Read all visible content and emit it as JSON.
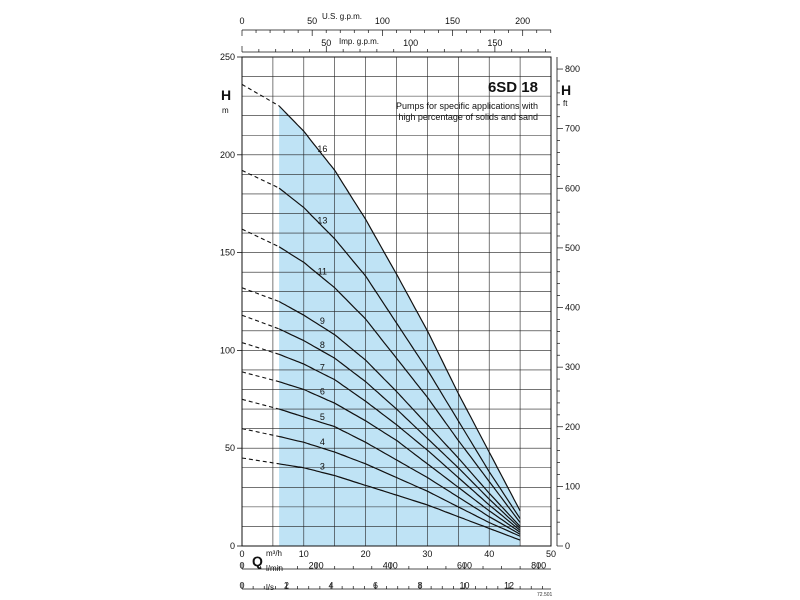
{
  "chart_data": {
    "type": "line",
    "title": "6SD 18",
    "annotation": [
      "Pumps for specific applications with",
      "high percentage of solids and sand"
    ],
    "figure_code": "72.501",
    "y_left": {
      "label": "H",
      "unit": "m",
      "range": [
        0,
        250
      ],
      "ticks": [
        0,
        50,
        100,
        150,
        200,
        250
      ]
    },
    "y_right": {
      "label": "H",
      "unit": "ft",
      "range": [
        0,
        820.2
      ],
      "ticks": [
        0,
        100,
        200,
        300,
        400,
        500,
        600,
        700,
        800
      ]
    },
    "x_axes": {
      "m3h": {
        "label": "Q",
        "unit": "m³/h",
        "range": [
          0,
          50
        ],
        "ticks": [
          0,
          10,
          20,
          30,
          40,
          50
        ]
      },
      "lmin": {
        "unit": "l/min",
        "ticks": [
          0,
          200,
          400,
          600,
          800
        ]
      },
      "ls": {
        "unit": "l/s",
        "ticks": [
          0,
          2,
          4,
          6,
          8,
          10,
          12
        ]
      },
      "usgpm": {
        "unit": "U.S. g.p.m.",
        "ticks": [
          0,
          50,
          100,
          150,
          200
        ]
      },
      "impgpm": {
        "unit": "Imp. g.p.m.",
        "ticks": [
          0,
          50,
          100,
          150
        ]
      }
    },
    "operating_range": [
      6,
      45
    ],
    "grid": true,
    "series": [
      {
        "name": "16",
        "label_x": 13,
        "points": [
          [
            0,
            236
          ],
          [
            6,
            225
          ],
          [
            10,
            212
          ],
          [
            15,
            192
          ],
          [
            20,
            167
          ],
          [
            25,
            139
          ],
          [
            30,
            110
          ],
          [
            35,
            78
          ],
          [
            40,
            48
          ],
          [
            45,
            18
          ]
        ]
      },
      {
        "name": "13",
        "label_x": 13,
        "points": [
          [
            0,
            192
          ],
          [
            6,
            183
          ],
          [
            10,
            173
          ],
          [
            15,
            157
          ],
          [
            20,
            138
          ],
          [
            25,
            114
          ],
          [
            30,
            90
          ],
          [
            35,
            64
          ],
          [
            40,
            38
          ],
          [
            45,
            14
          ]
        ]
      },
      {
        "name": "11",
        "label_x": 13,
        "points": [
          [
            0,
            162
          ],
          [
            6,
            153
          ],
          [
            10,
            145
          ],
          [
            15,
            132
          ],
          [
            20,
            116
          ],
          [
            25,
            96
          ],
          [
            30,
            76
          ],
          [
            35,
            54
          ],
          [
            40,
            33
          ],
          [
            45,
            12
          ]
        ]
      },
      {
        "name": "9",
        "label_x": 13,
        "points": [
          [
            0,
            132
          ],
          [
            6,
            125
          ],
          [
            10,
            118
          ],
          [
            15,
            108
          ],
          [
            20,
            95
          ],
          [
            25,
            79
          ],
          [
            30,
            62
          ],
          [
            35,
            45
          ],
          [
            40,
            27
          ],
          [
            45,
            10
          ]
        ]
      },
      {
        "name": "8",
        "label_x": 13,
        "points": [
          [
            0,
            118
          ],
          [
            6,
            111
          ],
          [
            10,
            105
          ],
          [
            15,
            96
          ],
          [
            20,
            84
          ],
          [
            25,
            70
          ],
          [
            30,
            55
          ],
          [
            35,
            40
          ],
          [
            40,
            24
          ],
          [
            45,
            9
          ]
        ]
      },
      {
        "name": "7",
        "label_x": 13,
        "points": [
          [
            0,
            104
          ],
          [
            6,
            98
          ],
          [
            10,
            93
          ],
          [
            15,
            85
          ],
          [
            20,
            74
          ],
          [
            25,
            62
          ],
          [
            30,
            49
          ],
          [
            35,
            35
          ],
          [
            40,
            21
          ],
          [
            45,
            8
          ]
        ]
      },
      {
        "name": "6",
        "label_x": 13,
        "points": [
          [
            0,
            89
          ],
          [
            6,
            84
          ],
          [
            10,
            80
          ],
          [
            15,
            73
          ],
          [
            20,
            64
          ],
          [
            25,
            54
          ],
          [
            30,
            42
          ],
          [
            35,
            30
          ],
          [
            40,
            18
          ],
          [
            45,
            7
          ]
        ]
      },
      {
        "name": "5",
        "label_x": 13,
        "points": [
          [
            0,
            75
          ],
          [
            6,
            70
          ],
          [
            10,
            66
          ],
          [
            15,
            61
          ],
          [
            20,
            53
          ],
          [
            25,
            44
          ],
          [
            30,
            35
          ],
          [
            35,
            25
          ],
          [
            40,
            15
          ],
          [
            45,
            6
          ]
        ]
      },
      {
        "name": "4",
        "label_x": 13,
        "points": [
          [
            0,
            60
          ],
          [
            6,
            56
          ],
          [
            10,
            53
          ],
          [
            15,
            48
          ],
          [
            20,
            42
          ],
          [
            25,
            35
          ],
          [
            30,
            28
          ],
          [
            35,
            20
          ],
          [
            40,
            12
          ],
          [
            45,
            5
          ]
        ]
      },
      {
        "name": "3",
        "label_x": 13,
        "points": [
          [
            0,
            45
          ],
          [
            6,
            42
          ],
          [
            10,
            40
          ],
          [
            15,
            36
          ],
          [
            20,
            31
          ],
          [
            25,
            26
          ],
          [
            30,
            21
          ],
          [
            35,
            15
          ],
          [
            40,
            9
          ],
          [
            45,
            3
          ]
        ]
      }
    ]
  }
}
